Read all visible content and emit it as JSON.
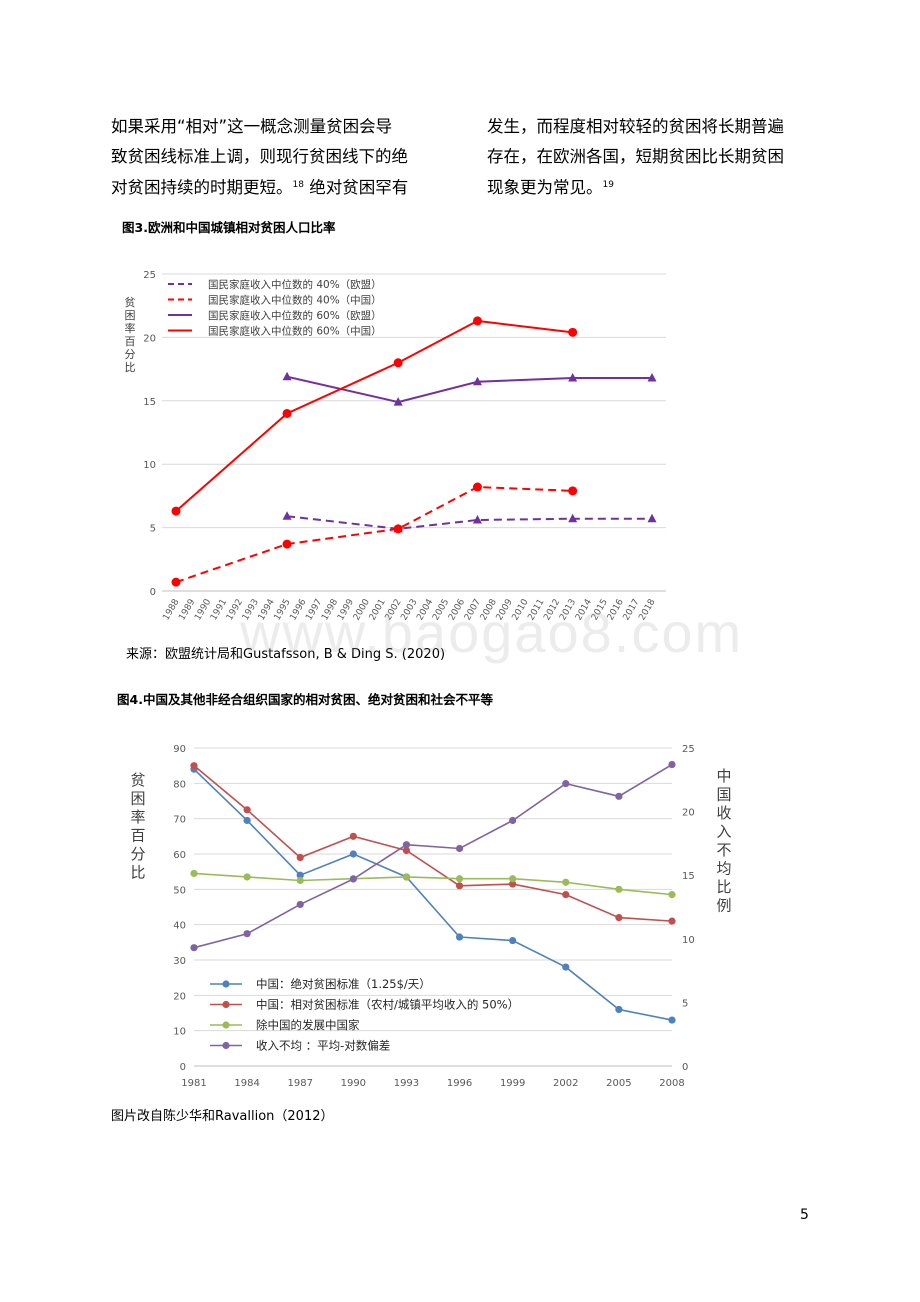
{
  "text": {
    "col_left_lines": [
      "如果采用“相对”这一概念测量贫困会导",
      "致贫困线标准上调，则现行贫困线下的绝"
    ],
    "col_left_last": "对贫困持续的时期更短。",
    "col_left_ref": "18",
    "col_left_tail": " 绝对贫困罕有",
    "col_right_lines": [
      "发生，而程度相对较轻的贫困将长期普遍",
      "存在，在欧洲各国，短期贫困比长期贫困"
    ],
    "col_right_last": "现象更为常见。",
    "col_right_ref": "19"
  },
  "figure3": {
    "title": "图3.欧洲和中国城镇相对贫困人口比率",
    "source": "来源：欧盟统计局和Gustafsson, B & Ding S. (2020)"
  },
  "figure4": {
    "title": "图4.中国及其他非经合组织国家的相对贫困、绝对贫困和社会不平等",
    "source": "图片改自陈少华和Ravallion（2012）"
  },
  "watermark": "www.baogao8.com",
  "page_number": "5",
  "chart_data": [
    {
      "type": "line",
      "ylabel": "贫困率百分比",
      "ylim": [
        0,
        25
      ],
      "yticks": [
        0,
        5,
        10,
        15,
        20,
        25
      ],
      "categories": [
        "1988",
        "1989",
        "1990",
        "1991",
        "1992",
        "1993",
        "1994",
        "1995",
        "1996",
        "1997",
        "1998",
        "1999",
        "2000",
        "2001",
        "2002",
        "2003",
        "2004",
        "2005",
        "2006",
        "2007",
        "2008",
        "2009",
        "2010",
        "2011",
        "2012",
        "2013",
        "2014",
        "2015",
        "2016",
        "2017",
        "2018"
      ],
      "grid": true,
      "legend_position": "top-left",
      "series": [
        {
          "name": "国民家庭收入中位数的 40%（欧盟）",
          "color": "#7030a0",
          "dash": true,
          "marker": "triangle",
          "points": [
            [
              1995,
              5.9
            ],
            [
              2002,
              4.9
            ],
            [
              2007,
              5.6
            ],
            [
              2013,
              5.7
            ],
            [
              2018,
              5.7
            ]
          ]
        },
        {
          "name": "国民家庭收入中位数的 40%（中国）",
          "color": "#ff0000",
          "dash": true,
          "marker": "circle",
          "points": [
            [
              1988,
              0.7
            ],
            [
              1995,
              3.7
            ],
            [
              2002,
              4.9
            ],
            [
              2007,
              8.2
            ],
            [
              2013,
              7.9
            ]
          ]
        },
        {
          "name": "国民家庭收入中位数的 60%（欧盟）",
          "color": "#7030a0",
          "dash": false,
          "marker": "triangle",
          "points": [
            [
              1995,
              16.9
            ],
            [
              2002,
              14.9
            ],
            [
              2007,
              16.5
            ],
            [
              2013,
              16.8
            ],
            [
              2018,
              16.8
            ]
          ]
        },
        {
          "name": "国民家庭收入中位数的 60%（中国）",
          "color": "#ff0000",
          "dash": false,
          "marker": "circle",
          "points": [
            [
              1988,
              6.3
            ],
            [
              1995,
              14.0
            ],
            [
              2002,
              18.0
            ],
            [
              2007,
              21.3
            ],
            [
              2013,
              20.4
            ]
          ]
        }
      ]
    },
    {
      "type": "line",
      "ylabel": "贫困率百分比",
      "y2label": "中国收入不均比例",
      "ylim": [
        0,
        90
      ],
      "y2lim": [
        0,
        25
      ],
      "yticks": [
        0,
        10,
        20,
        30,
        40,
        50,
        60,
        70,
        80,
        90
      ],
      "y2ticks": [
        0,
        5,
        10,
        15,
        20,
        25
      ],
      "categories": [
        "1981",
        "1984",
        "1987",
        "1990",
        "1993",
        "1996",
        "1999",
        "2002",
        "2005",
        "2008"
      ],
      "grid": true,
      "legend_position": "bottom-left",
      "series": [
        {
          "name": "中国：绝对贫困标准（1.25$/天）",
          "color": "#4f81bd",
          "axis": "left",
          "values": [
            84,
            69.5,
            54,
            60,
            53.5,
            36.5,
            35.5,
            28,
            16,
            13
          ]
        },
        {
          "name": "中国：相对贫困标准（农村/城镇平均收入的 50%）",
          "color": "#c0504d",
          "axis": "left",
          "values": [
            85,
            72.5,
            59,
            65,
            61,
            51,
            51.5,
            48.5,
            42,
            41
          ]
        },
        {
          "name": "除中国的发展中国家",
          "color": "#9bbb59",
          "axis": "left",
          "values": [
            54.5,
            53.5,
            52.5,
            53,
            53.5,
            53,
            53,
            52,
            50,
            48.5
          ]
        },
        {
          "name": "收入不均 ：平均-对数偏差",
          "color": "#8064a2",
          "axis": "right",
          "values": [
            9.3,
            10.4,
            12.7,
            14.7,
            17.4,
            17.1,
            19.3,
            22.2,
            21.2,
            23.7
          ]
        }
      ]
    }
  ]
}
